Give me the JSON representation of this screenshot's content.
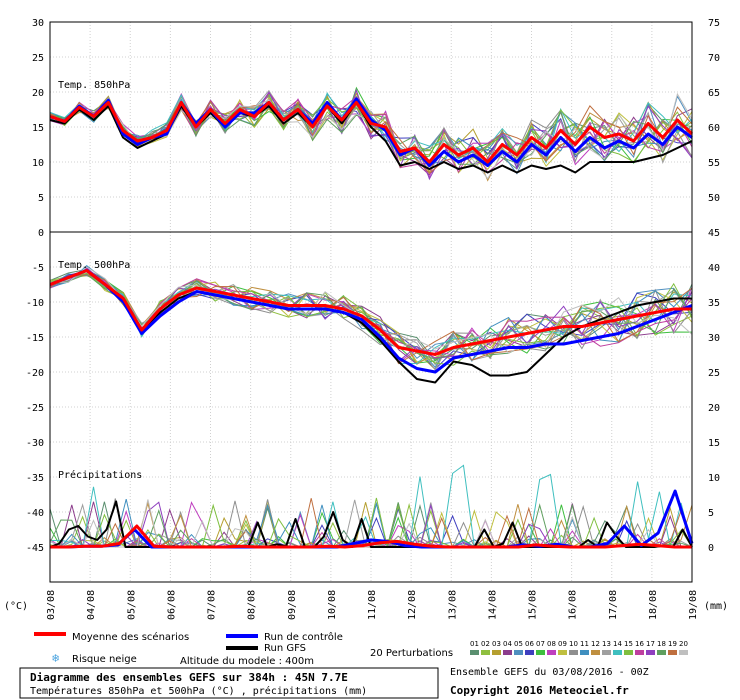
{
  "chart_data": {
    "type": "line",
    "x_dates": [
      "03/08",
      "04/08",
      "05/08",
      "06/08",
      "07/08",
      "08/08",
      "09/08",
      "10/08",
      "11/08",
      "12/08",
      "13/08",
      "14/08",
      "15/08",
      "16/08",
      "17/08",
      "18/08",
      "19/08"
    ],
    "x_unit": "(mm)",
    "y_left_unit": "(°C)",
    "y_left_ticks": [
      30,
      25,
      20,
      15,
      10,
      5,
      0,
      -5,
      -10,
      -15,
      -20,
      -25,
      -30,
      -35,
      -40,
      -45
    ],
    "y_right_ticks_temp850": [
      75,
      70,
      65,
      60,
      55,
      50,
      45
    ],
    "y_right_ticks_temp500": [
      40,
      35,
      30,
      25,
      20,
      15
    ],
    "y_right_ticks_precip": [
      10,
      5,
      0
    ],
    "panels": {
      "t850": {
        "label": "Temp. 850hPa",
        "ylim": [
          0,
          30
        ],
        "mean": [
          16.5,
          15.8,
          17.8,
          16.5,
          18.5,
          14.5,
          13.0,
          13.5,
          14.5,
          18.5,
          15.0,
          17.5,
          15.5,
          17.5,
          16.5,
          18.5,
          16.0,
          17.5,
          15.0,
          18.0,
          16.0,
          18.5,
          15.5,
          15.0,
          11.5,
          12.0,
          10.0,
          12.5,
          11.0,
          12.0,
          10.0,
          12.5,
          11.0,
          13.5,
          12.0,
          14.5,
          12.5,
          15.0,
          13.5,
          14.0,
          13.0,
          15.5,
          13.5,
          16.0,
          14.0
        ],
        "control": [
          16.5,
          15.8,
          18.0,
          16.5,
          18.8,
          14.0,
          12.5,
          13.5,
          14.0,
          18.5,
          15.5,
          17.5,
          15.0,
          17.0,
          17.0,
          18.5,
          16.0,
          17.5,
          15.5,
          18.5,
          16.0,
          19.0,
          16.0,
          14.5,
          11.0,
          12.0,
          9.5,
          11.5,
          10.0,
          11.0,
          9.5,
          11.5,
          10.0,
          12.5,
          11.0,
          13.5,
          11.5,
          13.5,
          12.0,
          13.0,
          12.0,
          14.0,
          12.5,
          15.0,
          13.5
        ],
        "gfs": [
          16.0,
          15.5,
          17.5,
          16.0,
          18.0,
          13.5,
          12.0,
          13.0,
          14.0,
          18.0,
          15.0,
          17.0,
          15.0,
          17.0,
          16.5,
          18.0,
          15.5,
          17.0,
          15.0,
          18.0,
          15.5,
          18.5,
          15.0,
          13.0,
          9.5,
          10.0,
          9.0,
          10.0,
          9.0,
          9.5,
          8.5,
          9.5,
          8.5,
          9.5,
          9.0,
          9.5,
          8.5,
          10.0,
          10.0,
          10.0,
          10.0,
          10.5,
          11.0,
          12.0,
          13.0
        ]
      },
      "t500": {
        "label": "Temp. 500hPa",
        "ylim": [
          -30,
          0
        ],
        "mean": [
          -7.5,
          -6.5,
          -5.5,
          -7.5,
          -9.5,
          -14.0,
          -11.0,
          -9.0,
          -8.0,
          -8.5,
          -9.0,
          -9.5,
          -10.0,
          -10.5,
          -10.5,
          -10.5,
          -11.0,
          -12.0,
          -14.0,
          -16.5,
          -17.0,
          -17.5,
          -16.5,
          -16.0,
          -15.5,
          -15.0,
          -14.5,
          -14.0,
          -13.5,
          -13.5,
          -13.0,
          -12.5,
          -12.0,
          -11.5,
          -11.0,
          -11.0
        ],
        "control": [
          -7.5,
          -6.5,
          -5.5,
          -7.5,
          -10.0,
          -14.5,
          -12.0,
          -10.0,
          -8.5,
          -9.0,
          -9.5,
          -10.0,
          -10.5,
          -11.0,
          -11.0,
          -11.0,
          -11.5,
          -12.5,
          -15.0,
          -18.0,
          -19.5,
          -20.0,
          -18.0,
          -17.5,
          -17.0,
          -16.5,
          -16.5,
          -16.0,
          -16.0,
          -15.5,
          -15.0,
          -14.5,
          -13.5,
          -12.5,
          -11.5,
          -10.5
        ],
        "gfs": [
          -7.5,
          -6.5,
          -5.5,
          -7.5,
          -10.0,
          -14.0,
          -11.5,
          -9.5,
          -8.5,
          -9.0,
          -9.5,
          -10.0,
          -10.5,
          -11.0,
          -11.0,
          -11.0,
          -11.5,
          -13.0,
          -15.5,
          -18.5,
          -21.0,
          -21.5,
          -18.5,
          -19.0,
          -20.5,
          -20.5,
          -20.0,
          -17.5,
          -15.0,
          -13.5,
          -12.5,
          -11.5,
          -10.5,
          -10.0,
          -9.5,
          -9.5
        ]
      },
      "precip": {
        "label": "Précipitations",
        "ylim": [
          0,
          10
        ],
        "mean": [
          0,
          0,
          0.1,
          0.1,
          0.5,
          3.0,
          0.1,
          0,
          0,
          0,
          0,
          0.1,
          0,
          0,
          0,
          0,
          0.1,
          0,
          0.2,
          0.6,
          0.8,
          0.4,
          0.1,
          0,
          0,
          0,
          0,
          0,
          0.3,
          0.1,
          0,
          0,
          0,
          0.2,
          0.4,
          0.2,
          0,
          0
        ],
        "control": [
          0,
          0,
          0.1,
          0.1,
          0.3,
          2.5,
          0,
          0,
          0,
          0,
          0,
          0,
          0,
          0,
          0,
          0,
          0,
          0,
          0.5,
          1.0,
          0.8,
          0.2,
          0,
          0,
          0,
          0,
          0,
          0,
          0.3,
          0.1,
          0.4,
          0,
          0,
          0.5,
          3.0,
          0.2,
          2.0,
          8.0,
          0.5
        ],
        "gfs": [
          0,
          0.5,
          2.5,
          3.0,
          1.5,
          1.0,
          2.5,
          6.5,
          0,
          0,
          0,
          0,
          0,
          0.1,
          0,
          0,
          0,
          0.1,
          0,
          0,
          0.1,
          0,
          3.5,
          0,
          0.4,
          0.1,
          4.0,
          0,
          0,
          1.5,
          5.0,
          1.0,
          0,
          4.0,
          0,
          0,
          0,
          0,
          0,
          0,
          0,
          0,
          0,
          0,
          0,
          0.1,
          2.5,
          0,
          0.5,
          3.5,
          0,
          0,
          0,
          0,
          0,
          0,
          0,
          1.0,
          0,
          3.5,
          1.5,
          0,
          0,
          0,
          0,
          0.2,
          0,
          2.5,
          0
        ]
      }
    },
    "perturbation_count": 20,
    "perturbation_numbers": [
      "01",
      "02",
      "03",
      "04",
      "05",
      "06",
      "07",
      "08",
      "09",
      "10",
      "11",
      "12",
      "13",
      "14",
      "15",
      "16",
      "17",
      "18",
      "19",
      "20"
    ],
    "perturbation_colors": [
      "#5a8f6f",
      "#8fbf3f",
      "#b59f2f",
      "#8c3c8c",
      "#4f8fbf",
      "#3f3fbf",
      "#3fbf3f",
      "#bf3fbf",
      "#bfbf3f",
      "#8f8f8f",
      "#3f8fbf",
      "#bf8f3f",
      "#9f9f9f",
      "#3fbfbf",
      "#7fbf3f",
      "#bf3f9f",
      "#8f3fbf",
      "#5f9f5f",
      "#bf6f3f",
      "#bfbfbf"
    ]
  },
  "legend": {
    "mean_label": "Moyenne des scénarios",
    "control_label": "Run de contrôle",
    "gfs_label": "Run GFS",
    "snow_label": "Risque neige",
    "altitude_label": "Altitude du modele : 400m",
    "pert_label": "20 Perturbations",
    "colors": {
      "mean": "#ff0000",
      "control": "#0000ff",
      "gfs": "#000000",
      "snow": "#4aa3df"
    }
  },
  "footer": {
    "title": "Diagramme des ensembles GEFS sur 384h : 45N 7.7E",
    "subtitle": "Températures 850hPa et 500hPa (°C) , précipitations (mm)",
    "run_info": "Ensemble GEFS du 03/08/2016 - 00Z",
    "copyright": "Copyright 2016 Meteociel.fr"
  }
}
